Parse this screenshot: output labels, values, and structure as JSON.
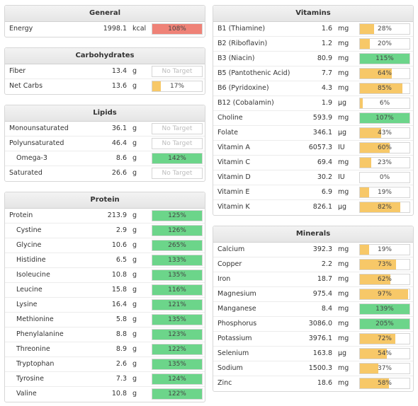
{
  "colors": {
    "green": "#6cd58a",
    "orange": "#f7c868",
    "red": "#ef8277"
  },
  "panels": {
    "general": {
      "title": "General",
      "rows": [
        {
          "name": "Energy",
          "value": "1998.1",
          "unit": "kcal",
          "pct": "108%",
          "fill": 1.0,
          "color": "red"
        }
      ]
    },
    "carbs": {
      "title": "Carbohydrates",
      "rows": [
        {
          "name": "Fiber",
          "value": "13.4",
          "unit": "g",
          "pct": "No Target",
          "fill": 0,
          "color": "none"
        },
        {
          "name": "Net Carbs",
          "value": "13.6",
          "unit": "g",
          "pct": "17%",
          "fill": 0.17,
          "color": "orange"
        }
      ]
    },
    "lipids": {
      "title": "Lipids",
      "rows": [
        {
          "name": "Monounsaturated",
          "value": "36.1",
          "unit": "g",
          "pct": "No Target",
          "fill": 0,
          "color": "none"
        },
        {
          "name": "Polyunsaturated",
          "value": "46.4",
          "unit": "g",
          "pct": "No Target",
          "fill": 0,
          "color": "none"
        },
        {
          "name": "Omega-3",
          "value": "8.6",
          "unit": "g",
          "pct": "142%",
          "fill": 1.0,
          "color": "green",
          "indent": true
        },
        {
          "name": "Saturated",
          "value": "26.6",
          "unit": "g",
          "pct": "No Target",
          "fill": 0,
          "color": "none"
        }
      ]
    },
    "protein": {
      "title": "Protein",
      "rows": [
        {
          "name": "Protein",
          "value": "213.9",
          "unit": "g",
          "pct": "125%",
          "fill": 1.0,
          "color": "green"
        },
        {
          "name": "Cystine",
          "value": "2.9",
          "unit": "g",
          "pct": "126%",
          "fill": 1.0,
          "color": "green",
          "indent": true
        },
        {
          "name": "Glycine",
          "value": "10.6",
          "unit": "g",
          "pct": "265%",
          "fill": 1.0,
          "color": "green",
          "indent": true
        },
        {
          "name": "Histidine",
          "value": "6.5",
          "unit": "g",
          "pct": "133%",
          "fill": 1.0,
          "color": "green",
          "indent": true
        },
        {
          "name": "Isoleucine",
          "value": "10.8",
          "unit": "g",
          "pct": "135%",
          "fill": 1.0,
          "color": "green",
          "indent": true
        },
        {
          "name": "Leucine",
          "value": "15.8",
          "unit": "g",
          "pct": "116%",
          "fill": 1.0,
          "color": "green",
          "indent": true
        },
        {
          "name": "Lysine",
          "value": "16.4",
          "unit": "g",
          "pct": "121%",
          "fill": 1.0,
          "color": "green",
          "indent": true
        },
        {
          "name": "Methionine",
          "value": "5.8",
          "unit": "g",
          "pct": "135%",
          "fill": 1.0,
          "color": "green",
          "indent": true
        },
        {
          "name": "Phenylalanine",
          "value": "8.8",
          "unit": "g",
          "pct": "123%",
          "fill": 1.0,
          "color": "green",
          "indent": true
        },
        {
          "name": "Threonine",
          "value": "8.9",
          "unit": "g",
          "pct": "122%",
          "fill": 1.0,
          "color": "green",
          "indent": true
        },
        {
          "name": "Tryptophan",
          "value": "2.6",
          "unit": "g",
          "pct": "135%",
          "fill": 1.0,
          "color": "green",
          "indent": true
        },
        {
          "name": "Tyrosine",
          "value": "7.3",
          "unit": "g",
          "pct": "124%",
          "fill": 1.0,
          "color": "green",
          "indent": true
        },
        {
          "name": "Valine",
          "value": "10.8",
          "unit": "g",
          "pct": "122%",
          "fill": 1.0,
          "color": "green",
          "indent": true
        }
      ]
    },
    "vitamins": {
      "title": "Vitamins",
      "rows": [
        {
          "name": "B1 (Thiamine)",
          "value": "1.6",
          "unit": "mg",
          "pct": "28%",
          "fill": 0.28,
          "color": "orange"
        },
        {
          "name": "B2 (Riboflavin)",
          "value": "1.2",
          "unit": "mg",
          "pct": "20%",
          "fill": 0.2,
          "color": "orange"
        },
        {
          "name": "B3 (Niacin)",
          "value": "80.9",
          "unit": "mg",
          "pct": "115%",
          "fill": 1.0,
          "color": "green"
        },
        {
          "name": "B5 (Pantothenic Acid)",
          "value": "7.7",
          "unit": "mg",
          "pct": "64%",
          "fill": 0.64,
          "color": "orange"
        },
        {
          "name": "B6 (Pyridoxine)",
          "value": "4.3",
          "unit": "mg",
          "pct": "85%",
          "fill": 0.85,
          "color": "orange"
        },
        {
          "name": "B12 (Cobalamin)",
          "value": "1.9",
          "unit": "µg",
          "pct": "6%",
          "fill": 0.06,
          "color": "orange"
        },
        {
          "name": "Choline",
          "value": "593.9",
          "unit": "mg",
          "pct": "107%",
          "fill": 1.0,
          "color": "green"
        },
        {
          "name": "Folate",
          "value": "346.1",
          "unit": "µg",
          "pct": "43%",
          "fill": 0.43,
          "color": "orange"
        },
        {
          "name": "Vitamin A",
          "value": "6057.3",
          "unit": "IU",
          "pct": "60%",
          "fill": 0.6,
          "color": "orange"
        },
        {
          "name": "Vitamin C",
          "value": "69.4",
          "unit": "mg",
          "pct": "23%",
          "fill": 0.23,
          "color": "orange"
        },
        {
          "name": "Vitamin D",
          "value": "30.2",
          "unit": "IU",
          "pct": "0%",
          "fill": 0,
          "color": "orange"
        },
        {
          "name": "Vitamin E",
          "value": "6.9",
          "unit": "mg",
          "pct": "19%",
          "fill": 0.19,
          "color": "orange"
        },
        {
          "name": "Vitamin K",
          "value": "826.1",
          "unit": "µg",
          "pct": "82%",
          "fill": 0.82,
          "color": "orange"
        }
      ]
    },
    "minerals": {
      "title": "Minerals",
      "rows": [
        {
          "name": "Calcium",
          "value": "392.3",
          "unit": "mg",
          "pct": "19%",
          "fill": 0.19,
          "color": "orange"
        },
        {
          "name": "Copper",
          "value": "2.2",
          "unit": "mg",
          "pct": "73%",
          "fill": 0.73,
          "color": "orange"
        },
        {
          "name": "Iron",
          "value": "18.7",
          "unit": "mg",
          "pct": "62%",
          "fill": 0.62,
          "color": "orange"
        },
        {
          "name": "Magnesium",
          "value": "975.4",
          "unit": "mg",
          "pct": "97%",
          "fill": 0.97,
          "color": "orange"
        },
        {
          "name": "Manganese",
          "value": "8.4",
          "unit": "mg",
          "pct": "139%",
          "fill": 1.0,
          "color": "green"
        },
        {
          "name": "Phosphorus",
          "value": "3086.0",
          "unit": "mg",
          "pct": "205%",
          "fill": 1.0,
          "color": "green"
        },
        {
          "name": "Potassium",
          "value": "3976.1",
          "unit": "mg",
          "pct": "72%",
          "fill": 0.72,
          "color": "orange"
        },
        {
          "name": "Selenium",
          "value": "163.8",
          "unit": "µg",
          "pct": "54%",
          "fill": 0.54,
          "color": "orange"
        },
        {
          "name": "Sodium",
          "value": "1500.3",
          "unit": "mg",
          "pct": "37%",
          "fill": 0.37,
          "color": "orange"
        },
        {
          "name": "Zinc",
          "value": "18.6",
          "unit": "mg",
          "pct": "58%",
          "fill": 0.58,
          "color": "orange"
        }
      ]
    }
  }
}
